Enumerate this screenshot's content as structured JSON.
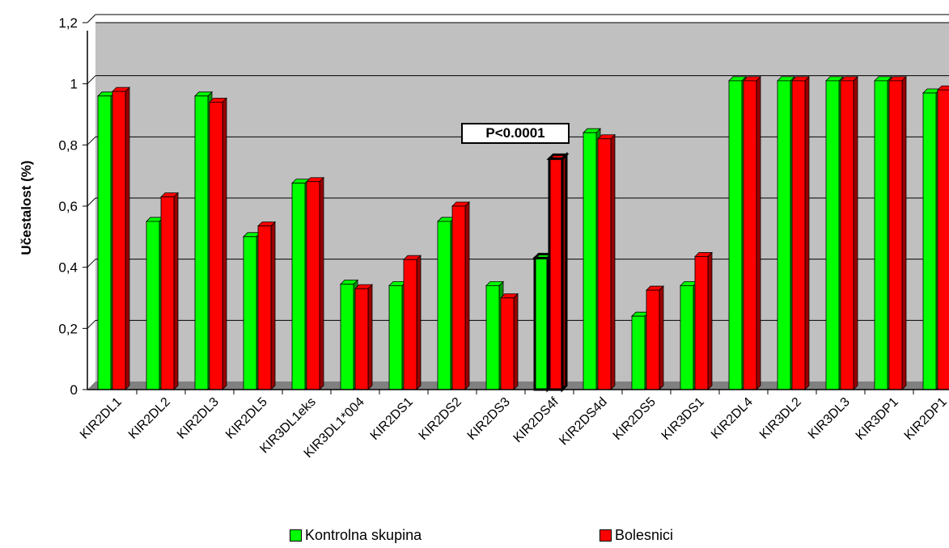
{
  "chart_data": {
    "type": "bar",
    "ylabel": "Učestalost (%)",
    "ylim": [
      0,
      1.2
    ],
    "yticks": [
      "0",
      "0,2",
      "0,4",
      "0,6",
      "0,8",
      "1",
      "1,2"
    ],
    "grid": true,
    "categories": [
      "KIR2DL1",
      "KIR2DL2",
      "KIR2DL3",
      "KIR2DL5",
      "KIR3DL1eks",
      "KIR3DL1*004",
      "KIR2DS1",
      "KIR2DS2",
      "KIR2DS3",
      "KIR2DS4f",
      "KIR2DS4d",
      "KIR2DS5",
      "KIR3DS1",
      "KIR2DL4",
      "KIR3DL2",
      "KIR3DL3",
      "KIR3DP1",
      "KIR2DP1"
    ],
    "series": [
      {
        "name": "Kontrolna skupina",
        "color": "#00ff00",
        "side": "#009900",
        "values": [
          0.96,
          0.55,
          0.96,
          0.5,
          0.675,
          0.345,
          0.34,
          0.55,
          0.34,
          0.43,
          0.84,
          0.24,
          0.34,
          1.01,
          1.01,
          1.01,
          1.01,
          0.97
        ]
      },
      {
        "name": "Bolesnici",
        "color": "#ff0000",
        "side": "#990000",
        "values": [
          0.975,
          0.63,
          0.94,
          0.535,
          0.68,
          0.33,
          0.425,
          0.6,
          0.3,
          0.755,
          0.82,
          0.325,
          0.435,
          1.01,
          1.01,
          1.01,
          1.01,
          0.98
        ]
      }
    ],
    "highlight_index": 9,
    "annotation": "P<0.0001",
    "legend_position": "bottom"
  },
  "colors": {
    "plot_background": "#c0c0c0",
    "gridline": "#000000",
    "control": "#00ff00",
    "patients": "#ff0000"
  }
}
